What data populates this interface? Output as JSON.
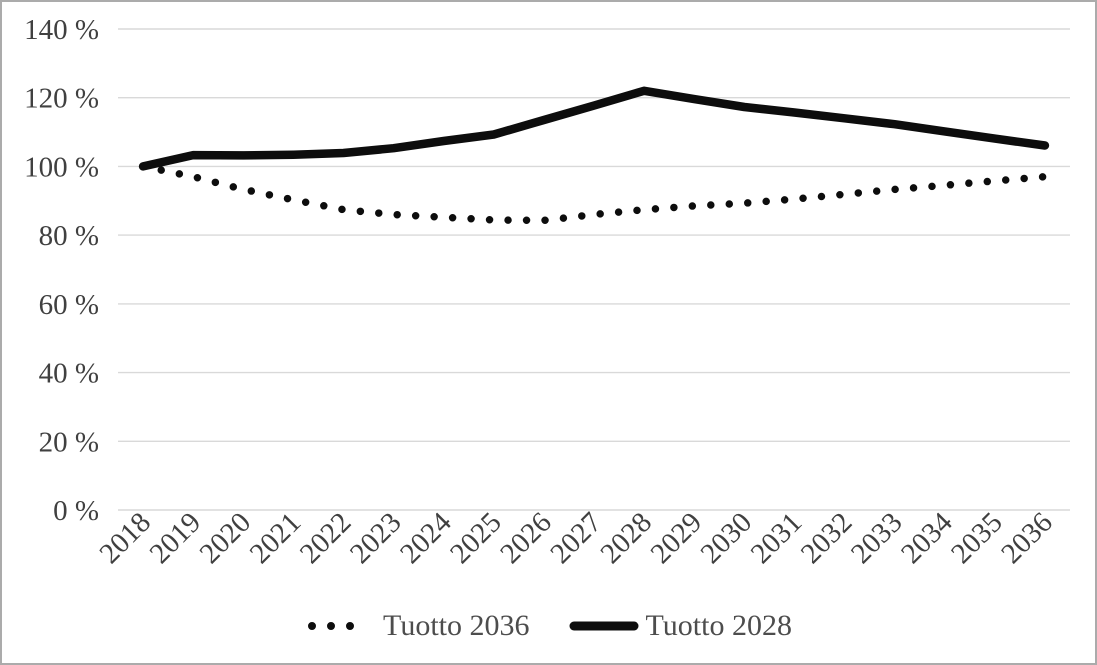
{
  "chart_data": {
    "type": "line",
    "title": "",
    "xlabel": "",
    "ylabel": "",
    "categories": [
      "2018",
      "2019",
      "2020",
      "2021",
      "2022",
      "2023",
      "2024",
      "2025",
      "2026",
      "2027",
      "2028",
      "2029",
      "2030",
      "2031",
      "2032",
      "2033",
      "2034",
      "2035",
      "2036"
    ],
    "series": [
      {
        "name": "Tuotto 2036",
        "style": "dotted",
        "color": "#0d0d0d",
        "values": [
          100,
          97,
          93.3,
          90.3,
          87.4,
          86,
          85.2,
          84.4,
          84.3,
          86,
          87.4,
          88.5,
          89.3,
          90.5,
          91.9,
          93.3,
          94.5,
          95.8,
          97
        ]
      },
      {
        "name": "Tuotto 2028",
        "style": "solid",
        "color": "#0d0d0d",
        "values": [
          100,
          103.3,
          103.2,
          103.4,
          103.9,
          105.3,
          107.4,
          109.3,
          113.5,
          117.7,
          122,
          119.6,
          117.3,
          115.7,
          114,
          112.3,
          110.2,
          108.1,
          106.1
        ]
      }
    ],
    "ylim": [
      0,
      140
    ],
    "ytick_step": 20,
    "ytick_labels": [
      "0 %",
      "20 %",
      "40 %",
      "60 %",
      "80 %",
      "100 %",
      "120 %",
      "140 %"
    ],
    "grid": "horizontal",
    "x_label_rotation_deg": -45,
    "legend_position": "bottom-center",
    "colors": {
      "grid": "#d9d9d9",
      "axis_text": "#404040",
      "legend_text": "#4d4d4d",
      "line": "#0d0d0d",
      "frame_border": "#ababab",
      "background": "#ffffff"
    }
  }
}
